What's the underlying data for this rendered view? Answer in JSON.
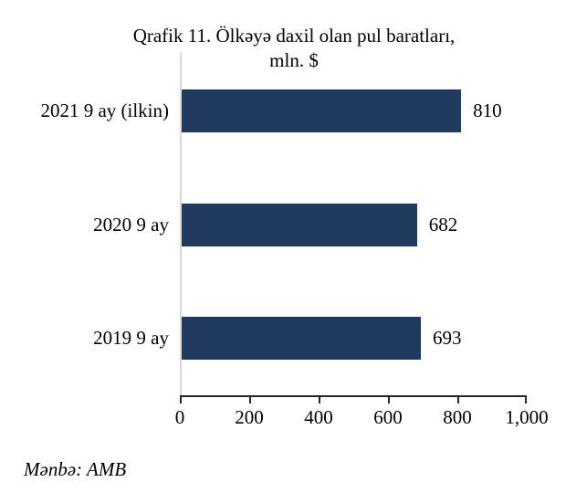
{
  "chart_data": {
    "type": "bar",
    "orientation": "horizontal",
    "title": "Qrafik 11. Ölkəyə daxil olan pul baratları,",
    "subtitle": "mln. $",
    "categories": [
      "2021 9 ay (ilkin)",
      "2020 9 ay",
      "2019 9 ay"
    ],
    "values": [
      810,
      682,
      693
    ],
    "value_labels": [
      "810",
      "682",
      "693"
    ],
    "xlabel": "",
    "ylabel": "",
    "xlim": [
      0,
      1000
    ],
    "x_ticks": [
      "0",
      "200",
      "400",
      "600",
      "800",
      "1,000"
    ],
    "x_tick_values": [
      0,
      200,
      400,
      600,
      800,
      1000
    ],
    "bar_color": "#1f3b5e",
    "baseline_color": "#d9d9d9",
    "axis_color": "#262626",
    "grid": false,
    "legend": false,
    "source": "Mənbə: AMB"
  }
}
